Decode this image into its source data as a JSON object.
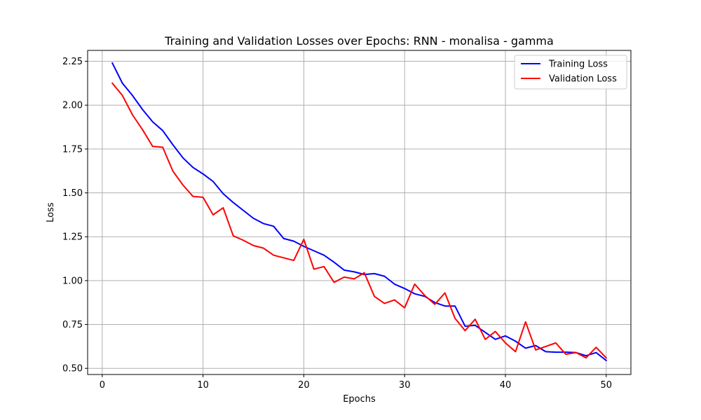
{
  "chart_data": {
    "type": "line",
    "title": "Training and Validation Losses over Epochs: RNN - monalisa - gamma",
    "xlabel": "Epochs",
    "ylabel": "Loss",
    "xlim": [
      -1.45,
      52.45
    ],
    "ylim": [
      0.465,
      2.312
    ],
    "x_ticks": [
      0,
      10,
      20,
      30,
      40,
      50
    ],
    "y_ticks": [
      0.5,
      0.75,
      1.0,
      1.25,
      1.5,
      1.75,
      2.0,
      2.25
    ],
    "y_tick_labels": [
      "0.50",
      "0.75",
      "1.00",
      "1.25",
      "1.50",
      "1.75",
      "2.00",
      "2.25"
    ],
    "grid": true,
    "legend_position": "top-right",
    "x": [
      1,
      2,
      3,
      4,
      5,
      6,
      7,
      8,
      9,
      10,
      11,
      12,
      13,
      14,
      15,
      16,
      17,
      18,
      19,
      20,
      21,
      22,
      23,
      24,
      25,
      26,
      27,
      28,
      29,
      30,
      31,
      32,
      33,
      34,
      35,
      36,
      37,
      38,
      39,
      40,
      41,
      42,
      43,
      44,
      45,
      46,
      47,
      48,
      49,
      50
    ],
    "series": [
      {
        "name": "Training Loss",
        "color": "#0000ff",
        "values": [
          2.24,
          2.125,
          2.055,
          1.975,
          1.905,
          1.855,
          1.775,
          1.7,
          1.645,
          1.608,
          1.565,
          1.495,
          1.445,
          1.4,
          1.355,
          1.325,
          1.31,
          1.24,
          1.225,
          1.195,
          1.17,
          1.145,
          1.105,
          1.06,
          1.05,
          1.035,
          1.04,
          1.025,
          0.98,
          0.955,
          0.925,
          0.91,
          0.875,
          0.855,
          0.855,
          0.74,
          0.745,
          0.705,
          0.665,
          0.685,
          0.655,
          0.615,
          0.63,
          0.595,
          0.592,
          0.592,
          0.59,
          0.572,
          0.59,
          0.545
        ]
      },
      {
        "name": "Validation Loss",
        "color": "#ff0000",
        "values": [
          2.125,
          2.055,
          1.945,
          1.86,
          1.765,
          1.76,
          1.625,
          1.545,
          1.48,
          1.475,
          1.375,
          1.415,
          1.255,
          1.23,
          1.2,
          1.185,
          1.145,
          1.13,
          1.115,
          1.235,
          1.065,
          1.08,
          0.99,
          1.02,
          1.01,
          1.045,
          0.91,
          0.87,
          0.89,
          0.845,
          0.98,
          0.915,
          0.865,
          0.93,
          0.785,
          0.715,
          0.78,
          0.665,
          0.71,
          0.645,
          0.595,
          0.765,
          0.605,
          0.625,
          0.645,
          0.58,
          0.59,
          0.56,
          0.62,
          0.56
        ]
      }
    ]
  }
}
